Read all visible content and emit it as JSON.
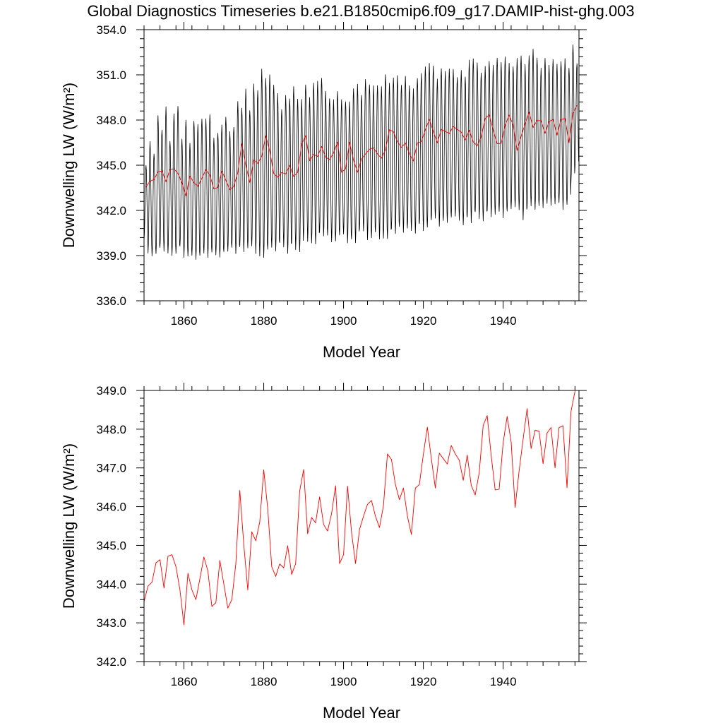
{
  "figure_title": "Global Diagnostics Timeseries b.e21.B1850cmip6.f09_g17.DAMIP-hist-ghg.003",
  "colors": {
    "monthly": "#000000",
    "annual": "#ff0000",
    "axes": "#000000"
  },
  "chart_data": [
    {
      "type": "line",
      "panel": "top",
      "title": "Global Diagnostics Timeseries b.e21.B1850cmip6.f09_g17.DAMIP-hist-ghg.003",
      "xlabel": "Model Year",
      "ylabel": "Downwelling LW (W/m²)",
      "xlim": [
        1850,
        1959
      ],
      "ylim": [
        336.0,
        354.0
      ],
      "x_ticks": [
        1860,
        1880,
        1900,
        1920,
        1940
      ],
      "x_tick_labels": [
        "1860",
        "1880",
        "1900",
        "1920",
        "1940"
      ],
      "y_ticks": [
        336.0,
        339.0,
        342.0,
        345.0,
        348.0,
        351.0,
        354.0
      ],
      "y_tick_labels": [
        "336.0",
        "339.0",
        "342.0",
        "345.0",
        "348.0",
        "351.0",
        "354.0"
      ],
      "grid": false,
      "series": [
        {
          "style": "monthly",
          "color": "#000000",
          "x_start": 1850.0,
          "x_step_per_year": 1,
          "annual_cycle_amplitude": 4.5,
          "annual_cycle_peak_month": 7,
          "yearly_peaks": [
            345.0,
            346.5,
            345.8,
            348.3,
            347.4,
            348.8,
            346.6,
            348.4,
            349.0,
            346.7,
            348.0,
            346.4,
            348.0,
            347.7,
            348.1,
            348.0,
            348.4,
            346.8,
            347.2,
            347.6,
            348.2,
            347.2,
            347.6,
            349.2,
            348.8,
            350.0,
            348.7,
            350.4,
            350.0,
            351.3,
            350.8,
            351.0,
            350.4,
            349.7,
            348.7,
            349.6,
            349.5,
            350.2,
            349.4,
            349.3,
            350.4,
            349.5,
            350.5,
            350.5,
            350.8,
            349.9,
            349.5,
            349.3,
            349.9,
            349.3,
            349.3,
            349.2,
            350.1,
            350.3,
            349.7,
            350.7,
            350.4,
            350.2,
            350.3,
            350.2,
            351.1,
            350.4,
            350.8,
            350.9,
            350.4,
            350.9,
            350.3,
            350.0,
            350.8,
            351.1,
            351.6,
            351.7,
            351.6,
            350.7,
            351.5,
            351.2,
            351.4,
            351.3,
            350.9,
            351.3,
            350.9,
            351.9,
            352.1,
            351.8,
            351.2,
            351.5,
            351.9,
            351.6,
            352.2,
            351.8,
            352.2,
            351.7,
            351.6,
            352.1,
            352.3,
            351.6,
            352.3,
            352.7,
            352.2,
            351.4,
            352.1,
            351.6,
            352.1,
            351.7,
            351.9,
            352.0,
            351.5,
            353.0,
            351.8
          ],
          "yearly_troughs": [
            340.0,
            339.2,
            339.0,
            339.1,
            339.5,
            339.3,
            339.2,
            339.0,
            339.1,
            339.6,
            338.9,
            339.0,
            339.0,
            338.7,
            339.0,
            339.2,
            338.9,
            339.2,
            339.0,
            338.9,
            339.3,
            339.3,
            339.5,
            339.1,
            339.6,
            339.3,
            339.5,
            339.6,
            339.1,
            339.0,
            338.9,
            339.4,
            339.5,
            339.3,
            339.9,
            339.6,
            339.1,
            339.8,
            339.4,
            339.3,
            340.5,
            339.9,
            339.8,
            339.8,
            340.6,
            340.3,
            340.3,
            339.9,
            340.0,
            340.4,
            340.4,
            339.8,
            340.1,
            339.9,
            340.8,
            340.6,
            340.0,
            340.2,
            340.6,
            340.1,
            340.1,
            340.1,
            340.8,
            340.5,
            340.9,
            340.5,
            340.8,
            340.7,
            340.5,
            341.1,
            340.6,
            340.9,
            341.4,
            341.5,
            340.9,
            341.3,
            341.2,
            341.6,
            341.6,
            341.3,
            341.0,
            341.6,
            341.2,
            341.9,
            341.4,
            341.3,
            342.0,
            341.6,
            341.7,
            341.9,
            341.5,
            342.0,
            342.1,
            342.2,
            342.0,
            341.4,
            342.2,
            342.3,
            342.0,
            342.3,
            342.2,
            342.5,
            342.3,
            342.4,
            342.5,
            342.1,
            342.4,
            343.9,
            344.8
          ]
        },
        {
          "style": "annual",
          "color": "#ff0000",
          "x_start": 1850.5,
          "x_step": 1,
          "values": [
            343.55,
            343.95,
            344.05,
            344.55,
            344.63,
            343.9,
            344.72,
            344.76,
            344.45,
            343.85,
            342.95,
            344.28,
            343.85,
            343.6,
            344.14,
            344.7,
            344.34,
            343.42,
            343.52,
            344.61,
            344.0,
            343.38,
            343.6,
            344.52,
            346.42,
            345.02,
            343.85,
            345.35,
            345.12,
            345.6,
            346.95,
            345.95,
            344.45,
            344.2,
            344.52,
            344.42,
            344.99,
            344.25,
            344.53,
            346.4,
            346.96,
            345.3,
            345.72,
            345.58,
            346.25,
            345.54,
            345.37,
            345.82,
            346.54,
            344.53,
            344.76,
            346.53,
            345.34,
            344.53,
            345.41,
            345.75,
            346.06,
            346.16,
            345.75,
            345.46,
            346.02,
            347.36,
            347.22,
            346.57,
            346.18,
            346.48,
            345.76,
            345.28,
            346.48,
            346.57,
            347.35,
            348.05,
            347.24,
            346.48,
            347.38,
            347.24,
            347.1,
            347.58,
            347.36,
            347.2,
            346.68,
            347.33,
            346.55,
            346.3,
            346.88,
            348.1,
            348.35,
            347.32,
            346.43,
            346.45,
            347.65,
            348.33,
            347.67,
            345.98,
            346.92,
            347.74,
            348.53,
            347.5,
            347.97,
            347.95,
            347.11,
            347.9,
            348.04,
            347.0,
            348.04,
            348.09,
            346.49,
            348.45,
            348.98
          ]
        }
      ]
    },
    {
      "type": "line",
      "panel": "bottom",
      "xlabel": "Model Year",
      "ylabel": "Downwelling LW (W/m²)",
      "xlim": [
        1850,
        1959
      ],
      "ylim": [
        342.0,
        349.0
      ],
      "x_ticks": [
        1860,
        1880,
        1900,
        1920,
        1940
      ],
      "x_tick_labels": [
        "1860",
        "1880",
        "1900",
        "1920",
        "1940"
      ],
      "y_ticks": [
        342.0,
        343.0,
        344.0,
        345.0,
        346.0,
        347.0,
        348.0,
        349.0
      ],
      "y_tick_labels": [
        "342.0",
        "343.0",
        "344.0",
        "345.0",
        "346.0",
        "347.0",
        "348.0",
        "349.0"
      ],
      "grid": false,
      "series": [
        {
          "style": "annual",
          "color": "#ff0000",
          "x_start": 1850.0,
          "x_step": 1,
          "values": [
            343.55,
            343.95,
            344.05,
            344.55,
            344.63,
            343.9,
            344.72,
            344.76,
            344.45,
            343.85,
            342.95,
            344.28,
            343.85,
            343.6,
            344.14,
            344.7,
            344.34,
            343.42,
            343.52,
            344.61,
            344.0,
            343.38,
            343.6,
            344.52,
            346.42,
            345.02,
            343.85,
            345.35,
            345.12,
            345.6,
            346.95,
            345.95,
            344.45,
            344.2,
            344.52,
            344.42,
            344.99,
            344.25,
            344.53,
            346.4,
            346.96,
            345.3,
            345.72,
            345.58,
            346.25,
            345.54,
            345.37,
            345.82,
            346.54,
            344.53,
            344.76,
            346.53,
            345.34,
            344.53,
            345.41,
            345.75,
            346.06,
            346.16,
            345.75,
            345.46,
            346.02,
            347.36,
            347.22,
            346.57,
            346.18,
            346.48,
            345.76,
            345.28,
            346.48,
            346.57,
            347.35,
            348.05,
            347.24,
            346.48,
            347.38,
            347.24,
            347.1,
            347.58,
            347.36,
            347.2,
            346.68,
            347.33,
            346.55,
            346.3,
            346.88,
            348.1,
            348.35,
            347.32,
            346.43,
            346.45,
            347.65,
            348.33,
            347.67,
            345.98,
            346.92,
            347.74,
            348.53,
            347.5,
            347.97,
            347.95,
            347.11,
            347.9,
            348.04,
            347.0,
            348.04,
            348.09,
            346.49,
            348.45,
            348.98
          ]
        }
      ]
    }
  ]
}
